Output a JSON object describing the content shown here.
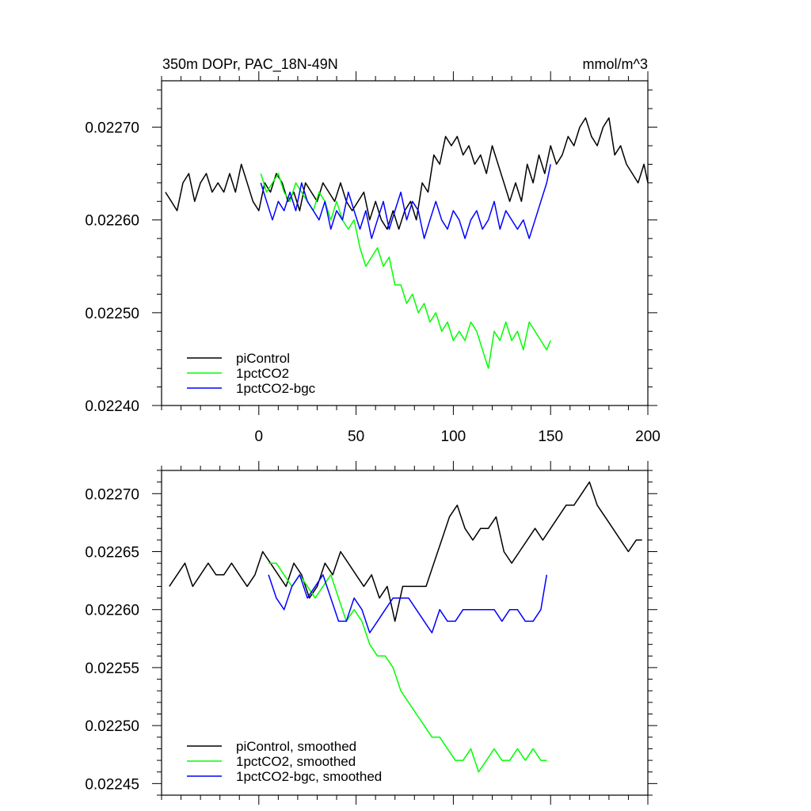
{
  "chart_data": [
    {
      "type": "line",
      "title": "350m DOPr, PAC_18N-49N",
      "units_label": "mmol/m^3",
      "xlim": [
        -50,
        200
      ],
      "ylim": [
        0.0224,
        0.02275
      ],
      "xticks": [
        0,
        50,
        100,
        150,
        200
      ],
      "xtick_labels": [
        "0",
        "50",
        "100",
        "150",
        "200"
      ],
      "yticks": [
        0.0224,
        0.0225,
        0.0226,
        0.0227
      ],
      "ytick_labels": [
        "0.02240",
        "0.02250",
        "0.02260",
        "0.02270"
      ],
      "grid": false,
      "legend_position": "bottom-left",
      "series": [
        {
          "name": "piControl",
          "color": "#000000",
          "x": [
            -48,
            -45,
            -42,
            -39,
            -36,
            -33,
            -30,
            -27,
            -24,
            -21,
            -18,
            -15,
            -12,
            -9,
            -6,
            -3,
            0,
            3,
            6,
            9,
            12,
            15,
            18,
            21,
            24,
            27,
            30,
            33,
            36,
            39,
            42,
            45,
            48,
            51,
            54,
            57,
            60,
            63,
            66,
            69,
            72,
            75,
            78,
            81,
            84,
            87,
            90,
            93,
            96,
            99,
            102,
            105,
            108,
            111,
            114,
            117,
            120,
            123,
            126,
            129,
            132,
            135,
            138,
            141,
            144,
            147,
            150,
            153,
            156,
            159,
            162,
            165,
            168,
            171,
            174,
            177,
            180,
            183,
            186,
            189,
            192,
            195,
            198,
            200
          ],
          "y": [
            0.02263,
            0.02262,
            0.02261,
            0.02264,
            0.02265,
            0.02262,
            0.02264,
            0.02265,
            0.02263,
            0.02264,
            0.02263,
            0.02265,
            0.02263,
            0.02266,
            0.02264,
            0.02262,
            0.02261,
            0.02264,
            0.02263,
            0.02265,
            0.02264,
            0.02262,
            0.02263,
            0.02261,
            0.02264,
            0.02263,
            0.02262,
            0.02264,
            0.02263,
            0.02262,
            0.02264,
            0.02262,
            0.02261,
            0.02262,
            0.02263,
            0.0226,
            0.02262,
            0.0226,
            0.02259,
            0.02261,
            0.02259,
            0.02261,
            0.02262,
            0.0226,
            0.02264,
            0.02263,
            0.02267,
            0.02266,
            0.02269,
            0.02268,
            0.02269,
            0.02267,
            0.02268,
            0.02266,
            0.02267,
            0.02265,
            0.02268,
            0.02266,
            0.02264,
            0.02262,
            0.02264,
            0.02262,
            0.02266,
            0.02264,
            0.02267,
            0.02265,
            0.02268,
            0.02266,
            0.02267,
            0.02269,
            0.02268,
            0.0227,
            0.02271,
            0.02269,
            0.02268,
            0.0227,
            0.02271,
            0.02267,
            0.02268,
            0.02266,
            0.02265,
            0.02264,
            0.02266,
            0.02264
          ]
        },
        {
          "name": "1pctCO2",
          "color": "#00ff00",
          "x": [
            1,
            4,
            7,
            10,
            13,
            16,
            19,
            22,
            25,
            28,
            31,
            34,
            37,
            40,
            43,
            46,
            49,
            52,
            55,
            58,
            61,
            64,
            67,
            70,
            73,
            76,
            79,
            82,
            85,
            88,
            91,
            94,
            97,
            100,
            103,
            106,
            109,
            112,
            115,
            118,
            121,
            124,
            127,
            130,
            133,
            136,
            139,
            142,
            145,
            148,
            150
          ],
          "y": [
            0.02265,
            0.02263,
            0.02264,
            0.02265,
            0.02263,
            0.02262,
            0.02264,
            0.02263,
            0.02262,
            0.02261,
            0.02263,
            0.02262,
            0.0226,
            0.02262,
            0.0226,
            0.02259,
            0.0226,
            0.02257,
            0.02255,
            0.02256,
            0.02257,
            0.02255,
            0.02256,
            0.02253,
            0.02253,
            0.02251,
            0.02252,
            0.0225,
            0.02251,
            0.02249,
            0.0225,
            0.02248,
            0.02249,
            0.02247,
            0.02248,
            0.02247,
            0.02249,
            0.02248,
            0.02246,
            0.02244,
            0.02248,
            0.02247,
            0.02249,
            0.02247,
            0.02248,
            0.02246,
            0.02249,
            0.02248,
            0.02247,
            0.02246,
            0.02247
          ]
        },
        {
          "name": "1pctCO2-bgc",
          "color": "#0000ff",
          "x": [
            1,
            4,
            7,
            10,
            13,
            16,
            19,
            22,
            25,
            28,
            31,
            34,
            37,
            40,
            43,
            46,
            49,
            52,
            55,
            58,
            61,
            64,
            67,
            70,
            73,
            76,
            79,
            82,
            85,
            88,
            91,
            94,
            97,
            100,
            103,
            106,
            109,
            112,
            115,
            118,
            121,
            124,
            127,
            130,
            133,
            136,
            139,
            142,
            145,
            148,
            150
          ],
          "y": [
            0.02264,
            0.02262,
            0.0226,
            0.02262,
            0.02261,
            0.02263,
            0.02261,
            0.02264,
            0.02262,
            0.02261,
            0.0226,
            0.02262,
            0.02259,
            0.02261,
            0.0226,
            0.02263,
            0.02261,
            0.02259,
            0.02261,
            0.02258,
            0.0226,
            0.02262,
            0.02259,
            0.02261,
            0.02263,
            0.0226,
            0.02262,
            0.02261,
            0.02258,
            0.0226,
            0.02262,
            0.0226,
            0.02259,
            0.02261,
            0.0226,
            0.02258,
            0.0226,
            0.02261,
            0.02259,
            0.0226,
            0.02262,
            0.02259,
            0.02261,
            0.0226,
            0.02259,
            0.0226,
            0.02258,
            0.0226,
            0.02262,
            0.02264,
            0.02266
          ]
        }
      ]
    },
    {
      "type": "line",
      "title": "",
      "xlim": [
        -50,
        200
      ],
      "ylim": [
        0.02244,
        0.02272
      ],
      "xticks": [
        0,
        50,
        100,
        150,
        200
      ],
      "yticks": [
        0.02245,
        0.0225,
        0.02255,
        0.0226,
        0.02265,
        0.0227
      ],
      "ytick_labels": [
        "0.02245",
        "0.02250",
        "0.02255",
        "0.02260",
        "0.02265",
        "0.02270"
      ],
      "grid": false,
      "legend_position": "bottom-left",
      "series": [
        {
          "name": "piControl, smoothed",
          "color": "#000000",
          "x": [
            -46,
            -42,
            -38,
            -34,
            -30,
            -26,
            -22,
            -18,
            -14,
            -10,
            -6,
            -2,
            2,
            6,
            10,
            14,
            18,
            22,
            26,
            30,
            34,
            38,
            42,
            46,
            50,
            54,
            58,
            62,
            66,
            70,
            74,
            78,
            82,
            86,
            90,
            94,
            98,
            102,
            106,
            110,
            114,
            118,
            122,
            126,
            130,
            134,
            138,
            142,
            146,
            150,
            154,
            158,
            162,
            166,
            170,
            174,
            178,
            182,
            186,
            190,
            194,
            197
          ],
          "y": [
            0.02262,
            0.02263,
            0.02264,
            0.02262,
            0.02263,
            0.02264,
            0.02263,
            0.02263,
            0.02264,
            0.02263,
            0.02262,
            0.02263,
            0.02265,
            0.02264,
            0.02263,
            0.02262,
            0.02264,
            0.02263,
            0.02261,
            0.02262,
            0.02264,
            0.02263,
            0.02265,
            0.02264,
            0.02263,
            0.02262,
            0.02263,
            0.02261,
            0.02262,
            0.02259,
            0.02262,
            0.02262,
            0.02262,
            0.02262,
            0.02264,
            0.02266,
            0.02268,
            0.02269,
            0.02267,
            0.02266,
            0.02267,
            0.02267,
            0.02268,
            0.02265,
            0.02264,
            0.02265,
            0.02266,
            0.02267,
            0.02266,
            0.02267,
            0.02268,
            0.02269,
            0.02269,
            0.0227,
            0.02271,
            0.02269,
            0.02268,
            0.02267,
            0.02266,
            0.02265,
            0.02266,
            0.02266
          ]
        },
        {
          "name": "1pctCO2, smoothed",
          "color": "#00ff00",
          "x": [
            5,
            9,
            13,
            17,
            21,
            25,
            29,
            33,
            37,
            41,
            45,
            49,
            53,
            57,
            61,
            65,
            69,
            73,
            77,
            81,
            85,
            89,
            93,
            97,
            101,
            105,
            109,
            113,
            117,
            121,
            125,
            129,
            133,
            137,
            141,
            145,
            148
          ],
          "y": [
            0.02264,
            0.02264,
            0.02263,
            0.02262,
            0.02263,
            0.02262,
            0.02261,
            0.02262,
            0.02263,
            0.02261,
            0.02259,
            0.0226,
            0.02259,
            0.02257,
            0.02256,
            0.02256,
            0.02255,
            0.02253,
            0.02252,
            0.02251,
            0.0225,
            0.02249,
            0.02249,
            0.02248,
            0.02247,
            0.02247,
            0.02248,
            0.02246,
            0.02247,
            0.02248,
            0.02247,
            0.02247,
            0.02248,
            0.02247,
            0.02248,
            0.02247,
            0.02247
          ]
        },
        {
          "name": "1pctCO2-bgc, smoothed",
          "color": "#0000ff",
          "x": [
            5,
            9,
            13,
            17,
            21,
            25,
            29,
            33,
            37,
            41,
            45,
            49,
            53,
            57,
            61,
            65,
            69,
            73,
            77,
            81,
            85,
            89,
            93,
            97,
            101,
            105,
            109,
            113,
            117,
            121,
            125,
            129,
            133,
            137,
            141,
            145,
            148
          ],
          "y": [
            0.02263,
            0.02261,
            0.0226,
            0.02262,
            0.02263,
            0.02261,
            0.02262,
            0.02263,
            0.02261,
            0.02259,
            0.02259,
            0.02261,
            0.0226,
            0.02258,
            0.02259,
            0.0226,
            0.02261,
            0.02261,
            0.02261,
            0.0226,
            0.02259,
            0.02258,
            0.0226,
            0.02259,
            0.02259,
            0.0226,
            0.0226,
            0.0226,
            0.0226,
            0.0226,
            0.02259,
            0.0226,
            0.0226,
            0.02259,
            0.02259,
            0.0226,
            0.02263
          ]
        }
      ]
    }
  ]
}
